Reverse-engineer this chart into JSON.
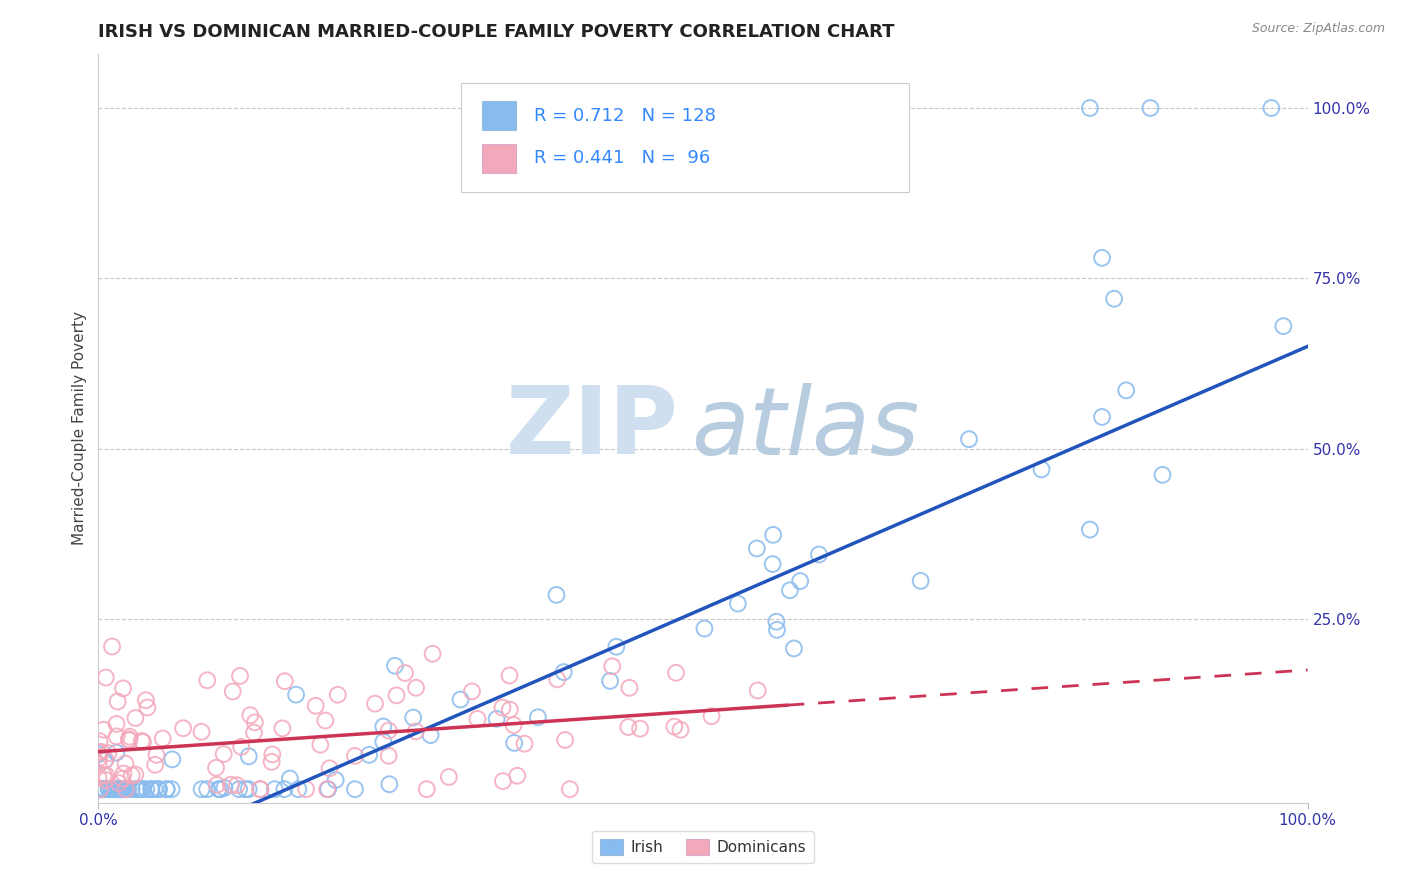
{
  "title": "IRISH VS DOMINICAN MARRIED-COUPLE FAMILY POVERTY CORRELATION CHART",
  "source_text": "Source: ZipAtlas.com",
  "ylabel": "Married-Couple Family Poverty",
  "xlim": [
    0.0,
    1.0
  ],
  "ylim": [
    -0.02,
    1.08
  ],
  "ytick_labels": [
    "100.0%",
    "75.0%",
    "50.0%",
    "25.0%"
  ],
  "ytick_values": [
    1.0,
    0.75,
    0.5,
    0.25
  ],
  "grid_color": "#c8c8c8",
  "irish_color": "#88bbee",
  "dominican_color": "#f4a8bb",
  "irish_R": 0.712,
  "irish_N": 128,
  "dominican_R": 0.441,
  "dominican_N": 96,
  "irish_line_color": "#2255bb",
  "dominican_line_color": "#cc3355",
  "watermark_zip": "ZIP",
  "watermark_atlas": "atlas",
  "watermark_color": "#d0dff0",
  "watermark_atlas_color": "#b8cce0",
  "background_color": "#ffffff",
  "title_fontsize": 13,
  "axis_label_fontsize": 11,
  "tick_fontsize": 11,
  "source_fontsize": 9,
  "legend_text_color": "#3388ff",
  "legend_label_color": "#333333",
  "tick_color": "#3333aa"
}
